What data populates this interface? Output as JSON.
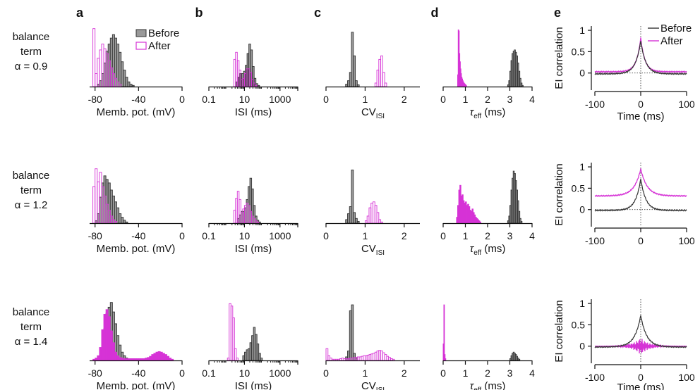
{
  "colors": {
    "before": "#999999",
    "before_edge": "#333333",
    "after": "#d633d6",
    "axis": "#111111"
  },
  "panel_letters": [
    "a",
    "b",
    "c",
    "d",
    "e"
  ],
  "rows": [
    {
      "label_lines": [
        "balance",
        "term",
        "α = 0.9"
      ]
    },
    {
      "label_lines": [
        "balance",
        "term",
        "α = 1.2"
      ]
    },
    {
      "label_lines": [
        "balance",
        "term",
        "α = 1.4"
      ]
    }
  ],
  "legend": {
    "before": "Before",
    "after": "After"
  },
  "chart_data": [
    {
      "id": "a",
      "type": "bar",
      "xlabel": "Memb. pot. (mV)",
      "xlim": [
        -85,
        0
      ],
      "xticks": [
        -80,
        -40,
        0
      ],
      "tick_labels": [
        "-80",
        "-40",
        "0"
      ],
      "rows": [
        {
          "before": {
            "x0": -78,
            "w": 2,
            "y": [
              0.04,
              0.1,
              0.22,
              0.4,
              0.6,
              0.72,
              0.82,
              0.88,
              0.82,
              0.72,
              0.58,
              0.42,
              0.28,
              0.16,
              0.08,
              0.04,
              0.02
            ]
          },
          "after": {
            "x0": -82,
            "w": 2,
            "y": [
              0.98,
              0.22,
              0.48,
              0.62,
              0.72,
              0.64,
              0.56,
              0.44,
              0.32,
              0.22,
              0.14,
              0.08,
              0.04
            ]
          }
        },
        {
          "before": {
            "x0": -80,
            "w": 2,
            "y": [
              0.04,
              0.16,
              0.44,
              0.68,
              0.8,
              0.74,
              0.68,
              0.56,
              0.46,
              0.36,
              0.26,
              0.16,
              0.1,
              0.05,
              0.02
            ]
          },
          "after": {
            "x0": -82,
            "w": 2,
            "y": [
              0.62,
              0.92,
              0.7,
              0.86,
              0.62,
              0.46,
              0.32,
              0.22,
              0.12,
              0.06,
              0.03
            ]
          }
        },
        {
          "before": {
            "x0": -78,
            "w": 2,
            "y": [
              0.02,
              0.06,
              0.24,
              0.54,
              0.8,
              0.9,
              0.98,
              0.82,
              0.62,
              0.42,
              0.26,
              0.14,
              0.08,
              0.04,
              0.02
            ]
          },
          "after": {
            "x0": -82,
            "w": 2,
            "y": [
              0.02,
              0.04,
              0.08,
              0.22,
              0.52,
              0.78,
              0.86,
              0.74,
              0.5,
              0.3,
              0.14,
              0.08,
              0.05,
              0.04,
              0.03,
              0.03,
              0.03,
              0.03,
              0.03,
              0.03,
              0.03,
              0.03,
              0.03,
              0.03,
              0.04,
              0.05,
              0.07,
              0.1,
              0.12,
              0.14,
              0.15,
              0.14,
              0.12,
              0.1,
              0.07,
              0.04,
              0.02
            ]
          }
        }
      ]
    },
    {
      "id": "b",
      "type": "bar",
      "log_x": true,
      "xlabel": "ISI (ms)",
      "xlim": [
        0.1,
        10000
      ],
      "xticks": [
        0.1,
        10,
        1000
      ],
      "tick_labels": [
        "0.1",
        "10",
        "1000"
      ],
      "rows": [
        {
          "before": {
            "x0": 3.5,
            "r": 1.26,
            "y": [
              0.08,
              0.16,
              0.22,
              0.22,
              0.26,
              0.36,
              0.56,
              0.72,
              0.62,
              0.34,
              0.14,
              0.05,
              0.02
            ]
          },
          "after": {
            "x0": 2.5,
            "r": 1.26,
            "y": [
              0.46,
              0.58,
              0.44,
              0.28,
              0.12,
              0.14,
              0.22,
              0.3,
              0.3,
              0.24,
              0.12,
              0.06,
              0.02
            ]
          }
        },
        {
          "before": {
            "x0": 4.0,
            "r": 1.26,
            "y": [
              0.08,
              0.14,
              0.2,
              0.2,
              0.26,
              0.4,
              0.62,
              0.76,
              0.58,
              0.3,
              0.12,
              0.05,
              0.02
            ]
          },
          "after": {
            "x0": 2.5,
            "r": 1.26,
            "y": [
              0.22,
              0.42,
              0.54,
              0.4,
              0.18,
              0.24,
              0.3,
              0.34,
              0.3,
              0.2,
              0.12,
              0.08,
              0.04,
              0.02
            ]
          }
        },
        {
          "before": {
            "x0": 8.0,
            "r": 1.26,
            "y": [
              0.08,
              0.14,
              0.18,
              0.2,
              0.3,
              0.42,
              0.56,
              0.44,
              0.28,
              0.12,
              0.04
            ]
          },
          "after": {
            "x0": 1.1,
            "r": 1.26,
            "y": [
              0.04,
              0.96,
              0.92,
              0.72,
              0.2,
              0.04
            ]
          }
        }
      ]
    },
    {
      "id": "c",
      "type": "bar",
      "xlabel_main": "CV",
      "xlabel_sub": "ISI",
      "xlim": [
        0,
        2.4
      ],
      "xticks": [
        0,
        1,
        2
      ],
      "tick_labels": [
        "0",
        "1",
        "2"
      ],
      "rows": [
        {
          "before": {
            "x0": 0.5,
            "w": 0.05,
            "y": [
              0.04,
              0.1,
              0.24,
              0.92,
              0.52,
              0.1,
              0.03
            ]
          },
          "after": {
            "x0": 1.25,
            "w": 0.05,
            "y": [
              0.06,
              0.28,
              0.46,
              0.52,
              0.24,
              0.06
            ]
          }
        },
        {
          "before": {
            "x0": 0.5,
            "w": 0.05,
            "y": [
              0.06,
              0.16,
              0.28,
              0.9,
              0.18,
              0.08,
              0.03
            ]
          },
          "after": {
            "x0": 1.0,
            "w": 0.05,
            "y": [
              0.04,
              0.12,
              0.26,
              0.34,
              0.36,
              0.3,
              0.18,
              0.06,
              0.02
            ]
          }
        },
        {
          "before": {
            "x0": 0.5,
            "w": 0.05,
            "y": [
              0.06,
              0.16,
              0.84,
              0.94,
              0.12,
              0.04
            ]
          },
          "after": {
            "x0": 0.0,
            "w": 0.05,
            "y": [
              0.2,
              0.08,
              0.04,
              0.02,
              0.02,
              0.02,
              0.02,
              0.03,
              0.04,
              0.03,
              0.03,
              0.03,
              0.04,
              0.04,
              0.05,
              0.05,
              0.06,
              0.06,
              0.07,
              0.08,
              0.08,
              0.09,
              0.1,
              0.11,
              0.12,
              0.14,
              0.16,
              0.17,
              0.16,
              0.13,
              0.1,
              0.07,
              0.05,
              0.03,
              0.02
            ]
          }
        }
      ]
    },
    {
      "id": "d",
      "type": "bar",
      "xlabel_main": "τ",
      "xlabel_sub": "eff",
      "xlabel_unit": " (ms)",
      "xlim": [
        0,
        4
      ],
      "xticks": [
        0,
        1,
        2,
        3,
        4
      ],
      "tick_labels": [
        "0",
        "1",
        "2",
        "3",
        "4"
      ],
      "rows": [
        {
          "before": {
            "x0": 2.9,
            "w": 0.05,
            "y": [
              0.03,
              0.1,
              0.26,
              0.44,
              0.56,
              0.6,
              0.62,
              0.58,
              0.52,
              0.4,
              0.26,
              0.14,
              0.06,
              0.02
            ]
          },
          "after": {
            "x0": 0.65,
            "w": 0.025,
            "y": [
              0.2,
              0.96,
              0.94,
              0.56,
              0.42,
              0.3,
              0.22,
              0.16,
              0.13,
              0.1,
              0.08,
              0.06,
              0.05,
              0.04,
              0.03,
              0.02
            ]
          }
        },
        {
          "before": {
            "x0": 2.9,
            "w": 0.05,
            "y": [
              0.04,
              0.12,
              0.3,
              0.56,
              0.76,
              0.88,
              0.84,
              0.72,
              0.56,
              0.38,
              0.2,
              0.08,
              0.03
            ]
          },
          "after": {
            "x0": 0.6,
            "w": 0.05,
            "y": [
              0.1,
              0.3,
              0.56,
              0.64,
              0.46,
              0.48,
              0.38,
              0.34,
              0.36,
              0.3,
              0.32,
              0.28,
              0.22,
              0.2,
              0.24,
              0.18,
              0.14,
              0.1,
              0.08,
              0.06,
              0.04,
              0.02
            ]
          }
        },
        {
          "before": {
            "x0": 3.0,
            "w": 0.05,
            "y": [
              0.03,
              0.08,
              0.12,
              0.14,
              0.12,
              0.1,
              0.07,
              0.04,
              0.02
            ]
          },
          "after": {
            "x0": 0.0,
            "w": 0.03,
            "y": [
              0.28,
              0.94,
              0.1,
              0.03
            ]
          }
        }
      ]
    },
    {
      "id": "e",
      "type": "line",
      "ylabel": "EI correlation",
      "xlabel": "Time (ms)",
      "xlim": [
        -100,
        100
      ],
      "ylim": [
        -0.4,
        1.1
      ],
      "xticks": [
        -100,
        0,
        100
      ],
      "xtick_labels": [
        "-100",
        "0",
        "100"
      ],
      "yticks": [
        0,
        0.5,
        1
      ],
      "ytick_labels": [
        "0",
        "0.5",
        "1"
      ],
      "legend_position": "top-right",
      "rows": [
        {
          "before": {
            "peak": 0.75,
            "tau": 11,
            "base": -0.02
          },
          "after": {
            "peak": 0.82,
            "tau": 9,
            "base": 0.03
          }
        },
        {
          "before": {
            "peak": 0.72,
            "tau": 11,
            "base": -0.02
          },
          "after": {
            "peak": 0.95,
            "tau": 14,
            "base": 0.32
          }
        },
        {
          "before": {
            "peak": 0.72,
            "tau": 13,
            "base": -0.02
          },
          "after": {
            "peak": 0.0,
            "tau": 3,
            "base": 0.0,
            "oscillating": true,
            "amp": 0.2
          }
        }
      ]
    }
  ]
}
